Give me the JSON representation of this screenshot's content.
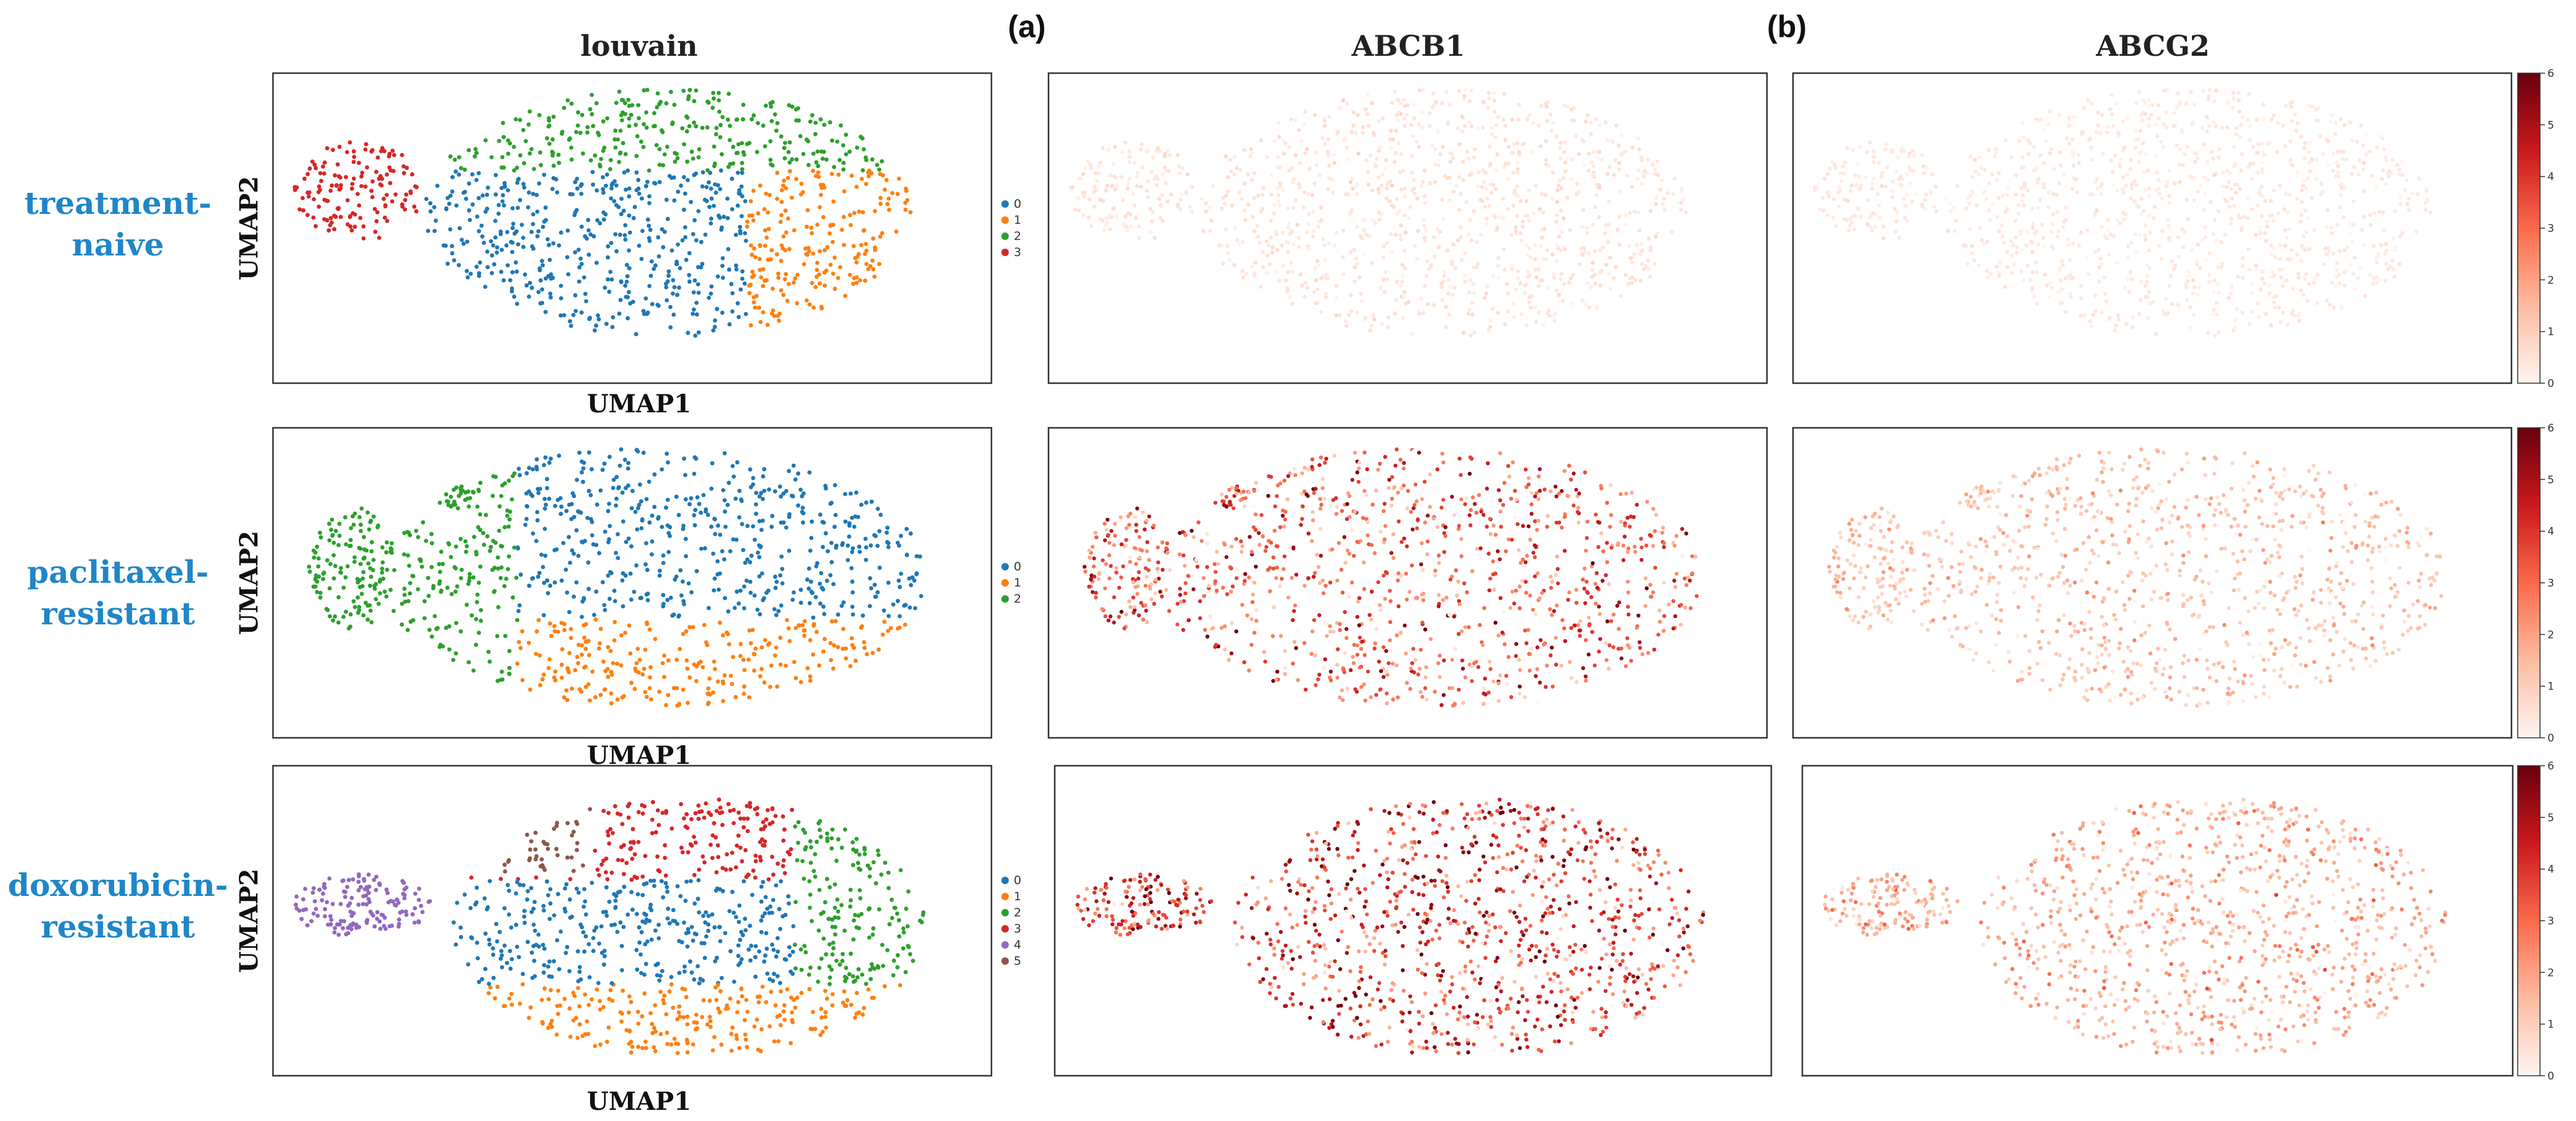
{
  "panel_labels": [
    "(a)",
    "(b)"
  ],
  "chart_data": [
    {
      "type": "scatter",
      "title": "louvain",
      "row": "treatment-naive",
      "xlabel": "UMAP1",
      "ylabel": "UMAP2",
      "legend": [
        "0",
        "1",
        "2",
        "3"
      ],
      "legend_position": "right",
      "colors": [
        "#1f77b4",
        "#ff7f0e",
        "#2ca02c",
        "#d62728"
      ]
    },
    {
      "type": "scatter",
      "title": "ABCB1",
      "row": "treatment-naive",
      "colorbar_range": [
        0,
        6
      ],
      "approx_mean_expression": 0.4
    },
    {
      "type": "scatter",
      "title": "ABCG2",
      "row": "treatment-naive",
      "colorbar_range": [
        0,
        6
      ],
      "colorbar_ticks": [
        "0",
        "1",
        "2",
        "3",
        "4",
        "5",
        "6"
      ],
      "approx_mean_expression": 0.3
    },
    {
      "type": "scatter",
      "title": "",
      "row": "paclitaxel-resistant",
      "xlabel": "UMAP1",
      "ylabel": "UMAP2",
      "legend": [
        "0",
        "1",
        "2"
      ],
      "legend_position": "right",
      "colors": [
        "#1f77b4",
        "#ff7f0e",
        "#2ca02c"
      ]
    },
    {
      "type": "scatter",
      "title": "",
      "row": "paclitaxel-resistant",
      "gene": "ABCB1",
      "colorbar_range": [
        0,
        6
      ],
      "approx_mean_expression": 3.0
    },
    {
      "type": "scatter",
      "title": "",
      "row": "paclitaxel-resistant",
      "gene": "ABCG2",
      "colorbar_range": [
        0,
        6
      ],
      "colorbar_ticks": [
        "0",
        "1",
        "2",
        "3",
        "4",
        "5",
        "6"
      ],
      "approx_mean_expression": 1.2
    },
    {
      "type": "scatter",
      "title": "",
      "row": "doxorubicin-resistant",
      "xlabel": "UMAP1",
      "ylabel": "UMAP2",
      "legend": [
        "0",
        "1",
        "2",
        "3",
        "4",
        "5"
      ],
      "legend_position": "right",
      "colors": [
        "#1f77b4",
        "#ff7f0e",
        "#2ca02c",
        "#d62728",
        "#9467bd",
        "#8c564b"
      ]
    },
    {
      "type": "scatter",
      "title": "",
      "row": "doxorubicin-resistant",
      "gene": "ABCB1",
      "colorbar_range": [
        0,
        6
      ],
      "approx_mean_expression": 3.5
    },
    {
      "type": "scatter",
      "title": "",
      "row": "doxorubicin-resistant",
      "gene": "ABCG2",
      "colorbar_range": [
        0,
        6
      ],
      "colorbar_ticks": [
        "0",
        "1",
        "2",
        "3",
        "4",
        "5",
        "6"
      ],
      "approx_mean_expression": 1.6
    }
  ],
  "rows": [
    {
      "line1": "treatment-",
      "line2": "naive"
    },
    {
      "line1": "paclitaxel-",
      "line2": "resistant"
    },
    {
      "line1": "doxorubicin-",
      "line2": "resistant"
    }
  ],
  "colormap": [
    "#fff5f0",
    "#fcbba1",
    "#fb6a4a",
    "#cb181d",
    "#67000d"
  ]
}
